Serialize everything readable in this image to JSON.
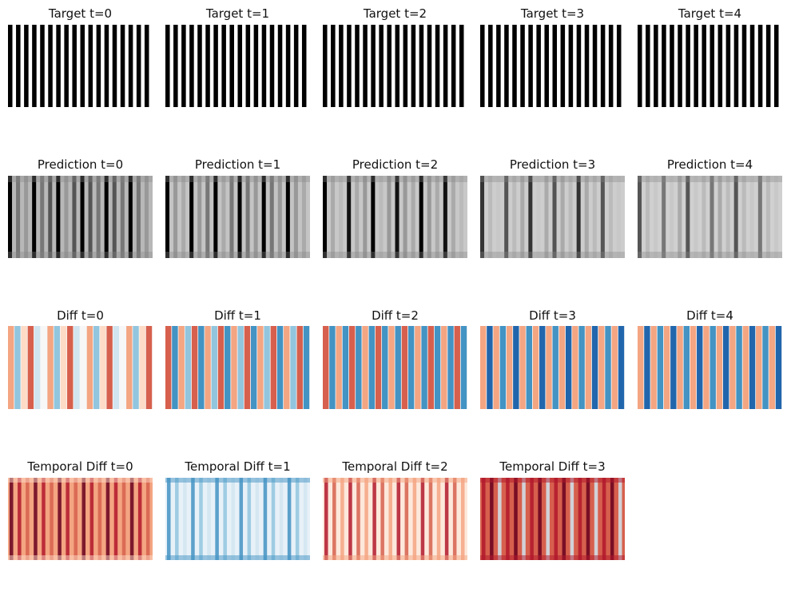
{
  "figure": {
    "rows": [
      {
        "id": "target",
        "colormap": "gray",
        "panels": [
          {
            "title": "Target t=0"
          },
          {
            "title": "Target t=1"
          },
          {
            "title": "Target t=2"
          },
          {
            "title": "Target t=3"
          },
          {
            "title": "Target t=4"
          }
        ]
      },
      {
        "id": "prediction",
        "colormap": "gray",
        "panels": [
          {
            "title": "Prediction t=0"
          },
          {
            "title": "Prediction t=1"
          },
          {
            "title": "Prediction t=2"
          },
          {
            "title": "Prediction t=3"
          },
          {
            "title": "Prediction t=4"
          }
        ]
      },
      {
        "id": "diff",
        "colormap": "RdBu",
        "panels": [
          {
            "title": "Diff t=0"
          },
          {
            "title": "Diff t=1"
          },
          {
            "title": "Diff t=2"
          },
          {
            "title": "Diff t=3"
          },
          {
            "title": "Diff t=4"
          }
        ]
      },
      {
        "id": "temporal-diff",
        "colormap": "RdBu",
        "panels": [
          {
            "title": "Temporal Diff t=0"
          },
          {
            "title": "Temporal Diff t=1"
          },
          {
            "title": "Temporal Diff t=2"
          },
          {
            "title": "Temporal Diff t=3"
          }
        ]
      }
    ]
  }
}
